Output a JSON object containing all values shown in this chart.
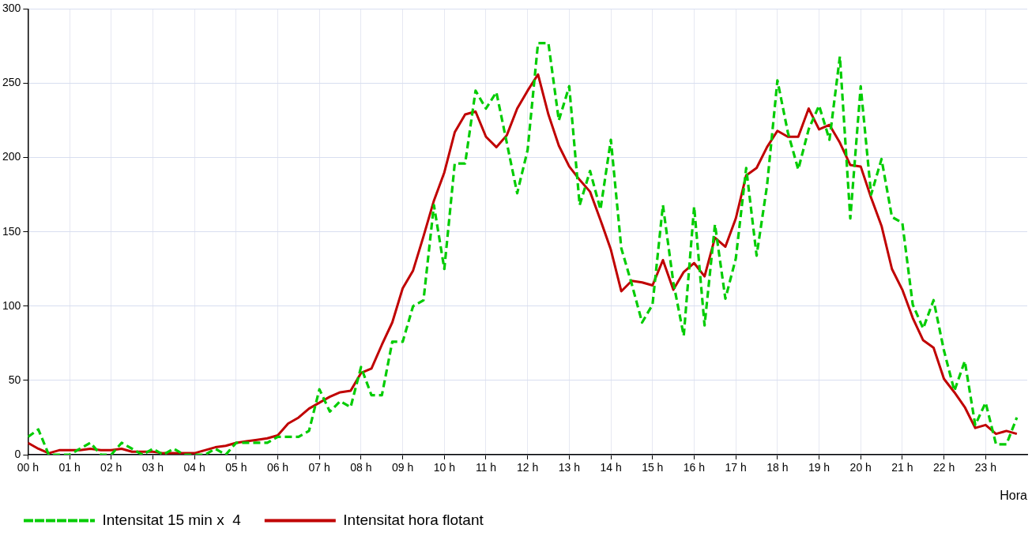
{
  "chart_data": {
    "type": "line",
    "xlabel": "Hora",
    "legend": "bottom left",
    "grid": true,
    "marker": "none",
    "x": [
      0,
      0.25,
      0.5,
      0.75,
      1,
      1.25,
      1.5,
      1.75,
      2,
      2.25,
      2.5,
      2.75,
      3,
      3.25,
      3.5,
      3.75,
      4,
      4.25,
      4.5,
      4.75,
      5,
      5.25,
      5.5,
      5.75,
      6,
      6.25,
      6.5,
      6.75,
      7,
      7.25,
      7.5,
      7.75,
      8,
      8.25,
      8.5,
      8.75,
      9,
      9.25,
      9.5,
      9.75,
      10,
      10.25,
      10.5,
      10.75,
      11,
      11.25,
      11.5,
      11.75,
      12,
      12.25,
      12.5,
      12.75,
      13,
      13.25,
      13.5,
      13.75,
      14,
      14.25,
      14.5,
      14.75,
      15,
      15.25,
      15.5,
      15.75,
      16,
      16.25,
      16.5,
      16.75,
      17,
      17.25,
      17.5,
      17.75,
      18,
      18.25,
      18.5,
      18.75,
      19,
      19.25,
      19.5,
      19.75,
      20,
      20.25,
      20.5,
      20.75,
      21,
      21.25,
      21.5,
      21.75,
      22,
      22.25,
      22.5,
      22.75,
      23,
      23.25,
      23.5,
      23.75
    ],
    "xlim": [
      0,
      24
    ],
    "xticks": [
      {
        "value": 0,
        "label": "00 h"
      },
      {
        "value": 1,
        "label": "01 h"
      },
      {
        "value": 2,
        "label": "02 h"
      },
      {
        "value": 3,
        "label": "03 h"
      },
      {
        "value": 4,
        "label": "04 h"
      },
      {
        "value": 5,
        "label": "05 h"
      },
      {
        "value": 6,
        "label": "06 h"
      },
      {
        "value": 7,
        "label": "07 h"
      },
      {
        "value": 8,
        "label": "08 h"
      },
      {
        "value": 9,
        "label": "09 h"
      },
      {
        "value": 10,
        "label": "10 h"
      },
      {
        "value": 11,
        "label": "11 h"
      },
      {
        "value": 12,
        "label": "12 h"
      },
      {
        "value": 13,
        "label": "13 h"
      },
      {
        "value": 14,
        "label": "14 h"
      },
      {
        "value": 15,
        "label": "15 h"
      },
      {
        "value": 16,
        "label": "16 h"
      },
      {
        "value": 17,
        "label": "17 h"
      },
      {
        "value": 18,
        "label": "18 h"
      },
      {
        "value": 19,
        "label": "19 h"
      },
      {
        "value": 20,
        "label": "20 h"
      },
      {
        "value": 21,
        "label": "21 h"
      },
      {
        "value": 22,
        "label": "22 h"
      },
      {
        "value": 23,
        "label": "23 h"
      }
    ],
    "ylim": [
      0,
      300
    ],
    "yticks": [
      0,
      50,
      100,
      150,
      200,
      250,
      300
    ],
    "series": [
      {
        "name": "Intensitat 15 min x  4",
        "color": "#00cc00",
        "line_style": "dashed",
        "values": [
          12,
          17,
          0,
          0,
          0,
          4,
          8,
          0,
          0,
          8,
          4,
          0,
          4,
          0,
          4,
          0,
          0,
          0,
          4,
          0,
          8,
          8,
          8,
          8,
          12,
          12,
          12,
          16,
          44,
          29,
          36,
          32,
          59,
          40,
          40,
          76,
          76,
          100,
          104,
          168,
          125,
          196,
          196,
          245,
          233,
          244,
          210,
          176,
          205,
          277,
          277,
          225,
          248,
          168,
          191,
          165,
          212,
          139,
          115,
          89,
          101,
          168,
          116,
          80,
          167,
          87,
          155,
          105,
          132,
          193,
          134,
          181,
          252,
          217,
          192,
          219,
          235,
          212,
          268,
          159,
          248,
          175,
          199,
          160,
          156,
          101,
          85,
          104,
          70,
          43,
          63,
          20,
          35,
          7,
          7,
          25
        ]
      },
      {
        "name": "Intensitat hora flotant",
        "color": "#c00000",
        "line_style": "solid",
        "values": [
          8,
          4,
          1,
          3,
          3,
          3,
          4,
          3,
          3,
          4,
          2,
          2,
          2,
          1,
          1,
          1,
          1,
          3,
          5,
          6,
          8,
          9,
          10,
          11,
          13,
          21,
          25,
          31,
          35,
          39,
          42,
          43,
          55,
          58,
          74,
          89,
          112,
          124,
          147,
          171,
          190,
          217,
          229,
          231,
          214,
          207,
          215,
          233,
          245,
          256,
          229,
          208,
          194,
          185,
          177,
          158,
          138,
          110,
          117,
          116,
          114,
          131,
          111,
          123,
          129,
          120,
          146,
          140,
          159,
          188,
          193,
          207,
          218,
          214,
          214,
          233,
          219,
          222,
          210,
          195,
          194,
          173,
          154,
          125,
          111,
          92,
          77,
          72,
          51,
          42,
          32,
          18,
          20,
          14,
          16,
          14
        ]
      }
    ]
  }
}
